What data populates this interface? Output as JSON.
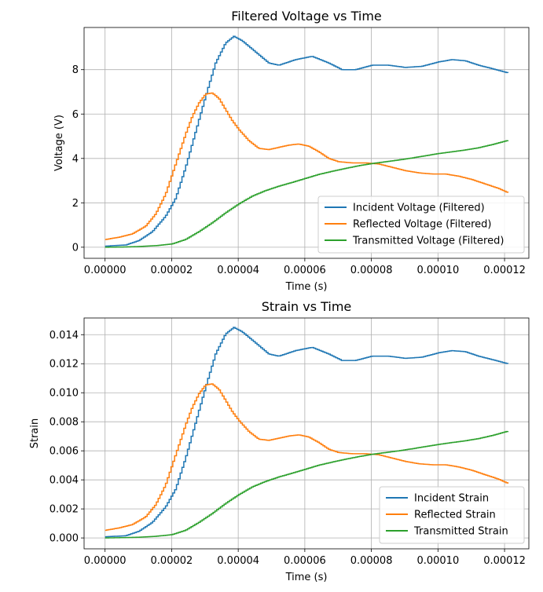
{
  "colors": {
    "incident": "#1f77b4",
    "reflected": "#ff7f0e",
    "transmitted": "#2ca02c"
  },
  "chart_data": [
    {
      "type": "line",
      "title": "Filtered Voltage vs Time",
      "xlabel": "Time (s)",
      "ylabel": "Voltage (V)",
      "xlim": [
        -6.3e-06,
        0.0001273
      ],
      "ylim": [
        -0.5,
        9.9
      ],
      "xticks": [
        0,
        2e-05,
        4e-05,
        6e-05,
        8e-05,
        0.0001,
        0.00012
      ],
      "xtick_labels": [
        "0.00000",
        "0.00002",
        "0.00004",
        "0.00006",
        "0.00008",
        "0.00010",
        "0.00012"
      ],
      "yticks": [
        0,
        2,
        4,
        6,
        8
      ],
      "ytick_labels": [
        "0",
        "2",
        "4",
        "6",
        "8"
      ],
      "grid": true,
      "legend_position": "lower-right",
      "series": [
        {
          "name": "Incident Voltage (Filtered)",
          "color_key": "incident",
          "x": [
            0,
            6e-06,
            1e-05,
            1.4e-05,
            1.8e-05,
            2.1e-05,
            2.4e-05,
            2.7e-05,
            3e-05,
            3.3e-05,
            3.6e-05,
            3.85e-05,
            4.1e-05,
            4.5e-05,
            4.9e-05,
            5.2e-05,
            5.7e-05,
            6.2e-05,
            6.7e-05,
            7.1e-05,
            7.5e-05,
            8e-05,
            8.5e-05,
            9e-05,
            9.5e-05,
            0.0001,
            0.000104,
            0.000108,
            0.000112,
            0.000116,
            0.000121
          ],
          "y": [
            0.05,
            0.1,
            0.3,
            0.7,
            1.4,
            2.2,
            3.6,
            5.2,
            6.8,
            8.3,
            9.2,
            9.5,
            9.3,
            8.8,
            8.3,
            8.2,
            8.45,
            8.6,
            8.3,
            8.0,
            8.0,
            8.2,
            8.2,
            8.1,
            8.15,
            8.35,
            8.45,
            8.4,
            8.2,
            8.05,
            7.85
          ]
        },
        {
          "name": "Reflected Voltage (Filtered)",
          "color_key": "reflected",
          "x": [
            0,
            4e-06,
            8e-06,
            1.2e-05,
            1.5e-05,
            1.8e-05,
            2e-05,
            2.2e-05,
            2.4e-05,
            2.6e-05,
            2.8e-05,
            3e-05,
            3.2e-05,
            3.4e-05,
            3.6e-05,
            3.8e-05,
            4e-05,
            4.3e-05,
            4.6e-05,
            4.9e-05,
            5.2e-05,
            5.5e-05,
            5.8e-05,
            6.1e-05,
            6.4e-05,
            6.7e-05,
            7e-05,
            7.4e-05,
            7.8e-05,
            8.2e-05,
            8.6e-05,
            9e-05,
            9.4e-05,
            9.8e-05,
            0.000102,
            0.000106,
            0.00011,
            0.000114,
            0.000118,
            0.000121
          ],
          "y": [
            0.35,
            0.45,
            0.6,
            0.95,
            1.5,
            2.4,
            3.3,
            4.2,
            5.1,
            5.9,
            6.5,
            6.9,
            6.95,
            6.7,
            6.2,
            5.7,
            5.3,
            4.8,
            4.45,
            4.4,
            4.5,
            4.6,
            4.65,
            4.55,
            4.3,
            4.0,
            3.85,
            3.8,
            3.8,
            3.75,
            3.6,
            3.45,
            3.35,
            3.3,
            3.3,
            3.2,
            3.05,
            2.85,
            2.65,
            2.45
          ]
        },
        {
          "name": "Transmitted Voltage (Filtered)",
          "color_key": "transmitted",
          "x": [
            0,
            5e-06,
            1e-05,
            1.5e-05,
            2e-05,
            2.4e-05,
            2.8e-05,
            3.2e-05,
            3.6e-05,
            4e-05,
            4.4e-05,
            4.8e-05,
            5.2e-05,
            5.6e-05,
            6e-05,
            6.4e-05,
            6.8e-05,
            7.2e-05,
            7.6e-05,
            8e-05,
            8.4e-05,
            8.8e-05,
            9.2e-05,
            9.6e-05,
            0.0001,
            0.000104,
            0.000108,
            0.000112,
            0.000116,
            0.000121
          ],
          "y": [
            0,
            0.01,
            0.03,
            0.07,
            0.15,
            0.35,
            0.7,
            1.1,
            1.55,
            1.95,
            2.3,
            2.55,
            2.75,
            2.92,
            3.1,
            3.28,
            3.42,
            3.55,
            3.67,
            3.77,
            3.85,
            3.93,
            4.02,
            4.12,
            4.22,
            4.3,
            4.38,
            4.48,
            4.62,
            4.82
          ]
        }
      ]
    },
    {
      "type": "line",
      "title": "Strain vs Time",
      "xlabel": "Time (s)",
      "ylabel": "Strain",
      "xlim": [
        -6.3e-06,
        0.0001273
      ],
      "ylim": [
        -0.00075,
        0.01515
      ],
      "xticks": [
        0,
        2e-05,
        4e-05,
        6e-05,
        8e-05,
        0.0001,
        0.00012
      ],
      "xtick_labels": [
        "0.00000",
        "0.00002",
        "0.00004",
        "0.00006",
        "0.00008",
        "0.00010",
        "0.00012"
      ],
      "yticks": [
        0,
        0.002,
        0.004,
        0.006,
        0.008,
        0.01,
        0.012,
        0.014
      ],
      "ytick_labels": [
        "0.000",
        "0.002",
        "0.004",
        "0.006",
        "0.008",
        "0.010",
        "0.012",
        "0.014"
      ],
      "grid": true,
      "legend_position": "lower-right",
      "series": [
        {
          "name": "Incident Strain",
          "color_key": "incident",
          "x": [
            0,
            6e-06,
            1e-05,
            1.4e-05,
            1.8e-05,
            2.1e-05,
            2.4e-05,
            2.7e-05,
            3e-05,
            3.3e-05,
            3.6e-05,
            3.85e-05,
            4.1e-05,
            4.5e-05,
            4.9e-05,
            5.2e-05,
            5.7e-05,
            6.2e-05,
            6.7e-05,
            7.1e-05,
            7.5e-05,
            8e-05,
            8.5e-05,
            9e-05,
            9.5e-05,
            0.0001,
            0.000104,
            0.000108,
            0.000112,
            0.000116,
            0.000121
          ],
          "y": [
            8e-05,
            0.00015,
            0.00046,
            0.00107,
            0.00214,
            0.00336,
            0.0055,
            0.00794,
            0.01038,
            0.01267,
            0.01405,
            0.0145,
            0.0142,
            0.01344,
            0.01267,
            0.01252,
            0.0129,
            0.01313,
            0.01267,
            0.01222,
            0.01222,
            0.01252,
            0.01252,
            0.01237,
            0.01245,
            0.01275,
            0.0129,
            0.01283,
            0.01252,
            0.01229,
            0.01199
          ]
        },
        {
          "name": "Reflected Strain",
          "color_key": "reflected",
          "x": [
            0,
            4e-06,
            8e-06,
            1.2e-05,
            1.5e-05,
            1.8e-05,
            2e-05,
            2.2e-05,
            2.4e-05,
            2.6e-05,
            2.8e-05,
            3e-05,
            3.2e-05,
            3.4e-05,
            3.6e-05,
            3.8e-05,
            4e-05,
            4.3e-05,
            4.6e-05,
            4.9e-05,
            5.2e-05,
            5.5e-05,
            5.8e-05,
            6.1e-05,
            6.4e-05,
            6.7e-05,
            7e-05,
            7.4e-05,
            7.8e-05,
            8.2e-05,
            8.6e-05,
            9e-05,
            9.4e-05,
            9.8e-05,
            0.000102,
            0.000106,
            0.00011,
            0.000114,
            0.000118,
            0.000121
          ],
          "y": [
            0.00053,
            0.00069,
            0.00092,
            0.00145,
            0.00229,
            0.00366,
            0.00504,
            0.00641,
            0.00779,
            0.00901,
            0.00993,
            0.01054,
            0.01061,
            0.01023,
            0.00947,
            0.0087,
            0.00809,
            0.00733,
            0.0068,
            0.00672,
            0.00687,
            0.00702,
            0.0071,
            0.00695,
            0.00657,
            0.00611,
            0.00588,
            0.0058,
            0.0058,
            0.00573,
            0.0055,
            0.00527,
            0.00511,
            0.00504,
            0.00504,
            0.00489,
            0.00466,
            0.00435,
            0.00405,
            0.00374
          ]
        },
        {
          "name": "Transmitted Strain",
          "color_key": "transmitted",
          "x": [
            0,
            5e-06,
            1e-05,
            1.5e-05,
            2e-05,
            2.4e-05,
            2.8e-05,
            3.2e-05,
            3.6e-05,
            4e-05,
            4.4e-05,
            4.8e-05,
            5.2e-05,
            5.6e-05,
            6e-05,
            6.4e-05,
            6.8e-05,
            7.2e-05,
            7.6e-05,
            8e-05,
            8.4e-05,
            8.8e-05,
            9.2e-05,
            9.6e-05,
            0.0001,
            0.000104,
            0.000108,
            0.000112,
            0.000116,
            0.000121
          ],
          "y": [
            0,
            2e-05,
            5e-05,
            0.00011,
            0.00023,
            0.00053,
            0.00107,
            0.00168,
            0.00237,
            0.00298,
            0.00351,
            0.00389,
            0.0042,
            0.00446,
            0.00473,
            0.00501,
            0.00522,
            0.00542,
            0.0056,
            0.00576,
            0.00588,
            0.006,
            0.00614,
            0.00629,
            0.00644,
            0.00657,
            0.00669,
            0.00684,
            0.00705,
            0.00736
          ]
        }
      ]
    }
  ]
}
